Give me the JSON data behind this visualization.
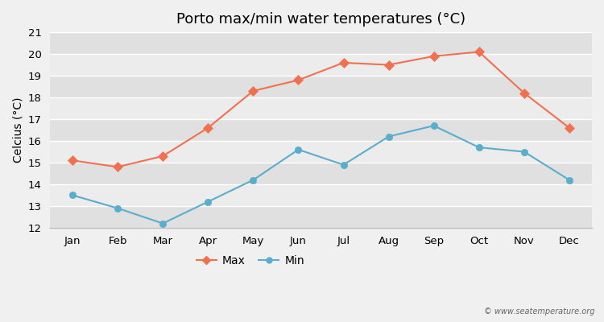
{
  "title": "Porto max/min water temperatures (°C)",
  "ylabel": "Celcius (°C)",
  "months": [
    "Jan",
    "Feb",
    "Mar",
    "Apr",
    "May",
    "Jun",
    "Jul",
    "Aug",
    "Sep",
    "Oct",
    "Nov",
    "Dec"
  ],
  "max_temps": [
    15.1,
    14.8,
    15.3,
    16.6,
    18.3,
    18.8,
    19.6,
    19.5,
    19.9,
    20.1,
    18.2,
    16.6
  ],
  "min_temps": [
    13.5,
    12.9,
    12.2,
    13.2,
    14.2,
    15.6,
    14.9,
    16.2,
    16.7,
    15.7,
    15.5,
    14.2
  ],
  "max_color": "#f07050",
  "min_color": "#5aaecc",
  "bg_color": "#f0f0f0",
  "plot_bg_color": "#e8e8e8",
  "band_color_light": "#ececec",
  "band_color_dark": "#e0e0e0",
  "grid_color": "#ffffff",
  "ylim": [
    12,
    21
  ],
  "yticks": [
    12,
    13,
    14,
    15,
    16,
    17,
    18,
    19,
    20,
    21
  ],
  "legend_labels": [
    "Max",
    "Min"
  ],
  "watermark": "© www.seatemperature.org",
  "title_fontsize": 13,
  "label_fontsize": 10,
  "tick_fontsize": 9.5,
  "legend_fontsize": 10
}
